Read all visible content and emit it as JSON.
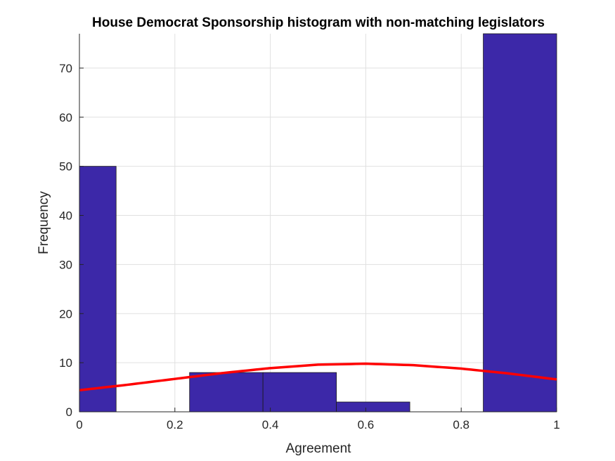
{
  "chart_data": {
    "type": "bar",
    "title": "House Democrat Sponsorship histogram with non-matching legislators",
    "xlabel": "Agreement",
    "ylabel": "Frequency",
    "xlim": [
      0,
      1
    ],
    "ylim": [
      0,
      77
    ],
    "grid": true,
    "x_ticks": [
      0,
      0.2,
      0.4,
      0.6,
      0.8,
      1
    ],
    "x_tick_labels": [
      "0",
      "0.2",
      "0.4",
      "0.6",
      "0.8",
      "1"
    ],
    "y_ticks": [
      0,
      10,
      20,
      30,
      40,
      50,
      60,
      70
    ],
    "y_tick_labels": [
      "0",
      "10",
      "20",
      "30",
      "40",
      "50",
      "60",
      "70"
    ],
    "bins": [
      {
        "start": -0.0769,
        "end": 0.0769,
        "value": 50
      },
      {
        "start": 0.0769,
        "end": 0.2308,
        "value": 0
      },
      {
        "start": 0.2308,
        "end": 0.3846,
        "value": 8
      },
      {
        "start": 0.3846,
        "end": 0.5385,
        "value": 8
      },
      {
        "start": 0.5385,
        "end": 0.6923,
        "value": 2
      },
      {
        "start": 0.6923,
        "end": 0.8462,
        "value": 0
      },
      {
        "start": 0.8462,
        "end": 1.0,
        "value": 77
      }
    ],
    "fit_curve": {
      "type": "normal",
      "x": [
        0,
        0.1,
        0.2,
        0.3,
        0.4,
        0.5,
        0.6,
        0.7,
        0.8,
        0.9,
        1.0
      ],
      "y": [
        4.4,
        5.5,
        6.7,
        7.9,
        8.9,
        9.6,
        9.8,
        9.5,
        8.8,
        7.8,
        6.6
      ]
    },
    "colors": {
      "bar_fill": "#3c28a8",
      "bar_edge": "#1a1a1a",
      "fit_line": "#ff0000",
      "grid": "#e0e0e0",
      "axis": "#262626"
    }
  }
}
